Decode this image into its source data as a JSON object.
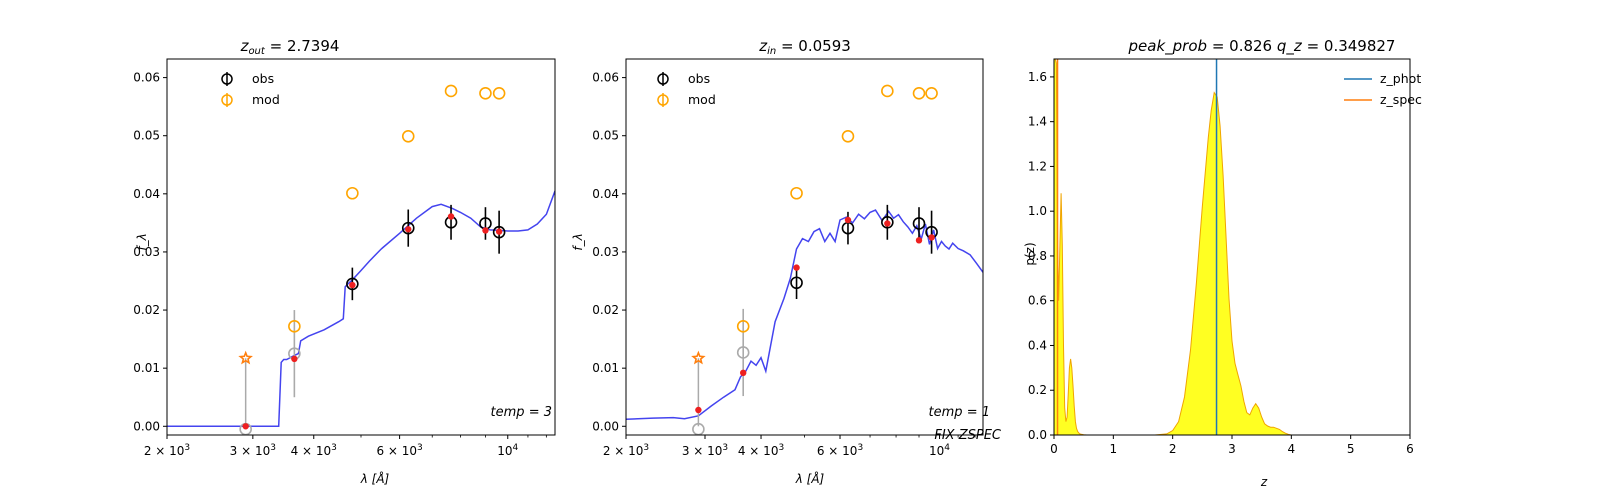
{
  "chart_data": [
    {
      "type": "scatter",
      "title": "z_out = 2.7394",
      "title_parts": {
        "var": "z",
        "sub": "out",
        "eq": "= 2.7394"
      },
      "xlabel": "λ [Å]",
      "ylabel": "f_λ",
      "xscale": "log",
      "xlim": [
        2000,
        12500
      ],
      "ylim": [
        -0.0015,
        0.0632
      ],
      "xticks": [
        {
          "value": 2000,
          "label_base": "2 × 10",
          "label_exp": "3"
        },
        {
          "value": 3000,
          "label_base": "3 × 10",
          "label_exp": "3"
        },
        {
          "value": 4000,
          "label_base": "4 × 10",
          "label_exp": "3"
        },
        {
          "value": 6000,
          "label_base": "6 × 10",
          "label_exp": "3"
        },
        {
          "value": 10000,
          "label_base": "10",
          "label_exp": "4"
        }
      ],
      "yticks": [
        0.0,
        0.01,
        0.02,
        0.03,
        0.04,
        0.05,
        0.06
      ],
      "ytick_labels": [
        "0.00",
        "0.01",
        "0.02",
        "0.03",
        "0.04",
        "0.05",
        "0.06"
      ],
      "legend": {
        "location": "upper left",
        "entries": [
          "obs",
          "mod"
        ]
      },
      "annotation": [
        "temp = 3"
      ],
      "colors": {
        "obs": "#000000",
        "obs_gray": "#aaaaaa",
        "mod": "#ffa500",
        "template": "#3a3aee",
        "model_point": "#ee2020",
        "upper_limit": "#ff7f0e"
      },
      "template": {
        "x": [
          2000,
          3390,
          3430,
          3470,
          3520,
          3650,
          3720,
          3760,
          3900,
          4200,
          4500,
          4600,
          4640,
          4700,
          4800,
          5000,
          5200,
          5500,
          6000,
          6500,
          7000,
          7300,
          7700,
          8000,
          8400,
          8800,
          9200,
          9600,
          10000,
          10500,
          11000,
          11500,
          12000,
          12500
        ],
        "y": [
          0.0,
          0.0,
          0.011,
          0.0115,
          0.0115,
          0.0122,
          0.0125,
          0.0147,
          0.0155,
          0.0166,
          0.018,
          0.0185,
          0.024,
          0.0245,
          0.0252,
          0.0268,
          0.0284,
          0.0305,
          0.0332,
          0.0358,
          0.0378,
          0.0382,
          0.0375,
          0.0368,
          0.0358,
          0.0343,
          0.0338,
          0.0337,
          0.0336,
          0.0336,
          0.0338,
          0.0348,
          0.0365,
          0.0405
        ]
      },
      "obs": [
        {
          "x": 2900,
          "y": -0.0005,
          "err": 0.0,
          "color": "gray"
        },
        {
          "x": 3650,
          "y": 0.0125,
          "err": 0.0075,
          "color": "gray"
        },
        {
          "x": 4800,
          "y": 0.0245,
          "err": 0.0028,
          "color": "black"
        },
        {
          "x": 6250,
          "y": 0.0341,
          "err": 0.0032,
          "color": "black"
        },
        {
          "x": 7650,
          "y": 0.0351,
          "err": 0.003,
          "color": "black"
        },
        {
          "x": 9000,
          "y": 0.0349,
          "err": 0.0028,
          "color": "black"
        },
        {
          "x": 9600,
          "y": 0.0334,
          "err": 0.0037,
          "color": "black"
        }
      ],
      "upper_limit": {
        "x": 2900,
        "y": 0.0117
      },
      "mod": [
        {
          "x": 3650,
          "y": 0.0172
        },
        {
          "x": 4800,
          "y": 0.0401
        },
        {
          "x": 6250,
          "y": 0.0499
        },
        {
          "x": 7650,
          "y": 0.0577
        },
        {
          "x": 9000,
          "y": 0.0573
        },
        {
          "x": 9600,
          "y": 0.0573
        }
      ],
      "model_points": [
        {
          "x": 2900,
          "y": 0.0
        },
        {
          "x": 3650,
          "y": 0.0116
        },
        {
          "x": 4800,
          "y": 0.0243
        },
        {
          "x": 6250,
          "y": 0.0339
        },
        {
          "x": 7650,
          "y": 0.0361
        },
        {
          "x": 9000,
          "y": 0.0337
        },
        {
          "x": 9600,
          "y": 0.0335
        }
      ]
    },
    {
      "type": "scatter",
      "title": "z_in = 0.0593",
      "title_parts": {
        "var": "z",
        "sub": "in",
        "eq": "= 0.0593"
      },
      "xlabel": "λ [Å]",
      "ylabel": "f_λ",
      "xscale": "log",
      "xlim": [
        2000,
        12500
      ],
      "ylim": [
        -0.0015,
        0.0632
      ],
      "xticks": [
        {
          "value": 2000,
          "label_base": "2 × 10",
          "label_exp": "3"
        },
        {
          "value": 3000,
          "label_base": "3 × 10",
          "label_exp": "3"
        },
        {
          "value": 4000,
          "label_base": "4 × 10",
          "label_exp": "3"
        },
        {
          "value": 6000,
          "label_base": "6 × 10",
          "label_exp": "3"
        },
        {
          "value": 10000,
          "label_base": "10",
          "label_exp": "4"
        }
      ],
      "yticks": [
        0.0,
        0.01,
        0.02,
        0.03,
        0.04,
        0.05,
        0.06
      ],
      "ytick_labels": [
        "0.00",
        "0.01",
        "0.02",
        "0.03",
        "0.04",
        "0.05",
        "0.06"
      ],
      "legend": {
        "location": "upper left",
        "entries": [
          "obs",
          "mod"
        ]
      },
      "annotation": [
        "temp = 1",
        "FIX ZSPEC"
      ],
      "colors": {
        "obs": "#000000",
        "obs_gray": "#aaaaaa",
        "mod": "#ffa500",
        "template": "#3a3aee",
        "model_point": "#ee2020",
        "upper_limit": "#ff7f0e"
      },
      "template": {
        "x": [
          2000,
          2300,
          2550,
          2700,
          2900,
          3100,
          3300,
          3500,
          3600,
          3700,
          3800,
          3900,
          4000,
          4100,
          4300,
          4500,
          4650,
          4800,
          4950,
          5100,
          5250,
          5400,
          5550,
          5700,
          5850,
          6000,
          6200,
          6400,
          6600,
          6800,
          7000,
          7200,
          7450,
          7700,
          7900,
          8100,
          8300,
          8500,
          8700,
          8900,
          9100,
          9300,
          9500,
          9700,
          9900,
          10100,
          10300,
          10500,
          10700,
          11000,
          11300,
          11700,
          12100,
          12500
        ],
        "y": [
          0.0012,
          0.0014,
          0.0015,
          0.0013,
          0.0018,
          0.0035,
          0.005,
          0.0063,
          0.0085,
          0.0095,
          0.0112,
          0.0105,
          0.0118,
          0.0095,
          0.018,
          0.022,
          0.0255,
          0.0305,
          0.0323,
          0.0318,
          0.0335,
          0.034,
          0.0318,
          0.0332,
          0.0318,
          0.0355,
          0.036,
          0.035,
          0.0365,
          0.0357,
          0.0368,
          0.0372,
          0.0354,
          0.037,
          0.0358,
          0.0364,
          0.0352,
          0.0343,
          0.0332,
          0.0345,
          0.0322,
          0.0348,
          0.0313,
          0.0338,
          0.0306,
          0.0318,
          0.031,
          0.0305,
          0.0315,
          0.0306,
          0.0302,
          0.0295,
          0.028,
          0.0265
        ]
      },
      "obs": [
        {
          "x": 2900,
          "y": -0.0005,
          "err": 0.0,
          "color": "gray"
        },
        {
          "x": 3650,
          "y": 0.0127,
          "err": 0.0075,
          "color": "gray"
        },
        {
          "x": 4800,
          "y": 0.0247,
          "err": 0.0028,
          "color": "black"
        },
        {
          "x": 6250,
          "y": 0.0341,
          "err": 0.0028,
          "color": "black"
        },
        {
          "x": 7650,
          "y": 0.0351,
          "err": 0.003,
          "color": "black"
        },
        {
          "x": 9000,
          "y": 0.0349,
          "err": 0.0028,
          "color": "black"
        },
        {
          "x": 9600,
          "y": 0.0334,
          "err": 0.0037,
          "color": "black"
        }
      ],
      "upper_limit": {
        "x": 2900,
        "y": 0.0117
      },
      "mod": [
        {
          "x": 3650,
          "y": 0.0172
        },
        {
          "x": 4800,
          "y": 0.0401
        },
        {
          "x": 6250,
          "y": 0.0499
        },
        {
          "x": 7650,
          "y": 0.0577
        },
        {
          "x": 9000,
          "y": 0.0573
        },
        {
          "x": 9600,
          "y": 0.0573
        }
      ],
      "model_points": [
        {
          "x": 2900,
          "y": 0.0028
        },
        {
          "x": 3650,
          "y": 0.0092
        },
        {
          "x": 4800,
          "y": 0.0273
        },
        {
          "x": 6250,
          "y": 0.0355
        },
        {
          "x": 7650,
          "y": 0.0349
        },
        {
          "x": 9000,
          "y": 0.032
        },
        {
          "x": 9600,
          "y": 0.0325
        }
      ]
    },
    {
      "type": "area",
      "title": "peak_prob = 0.826      q_z = 0.349827",
      "title_parts": {
        "left_var": "peak_prob",
        "left_eq": "= 0.826",
        "right_var": "q_z",
        "right_eq": "= 0.349827"
      },
      "xlabel": "z",
      "ylabel": "p(z)",
      "xlim": [
        0,
        6
      ],
      "ylim": [
        0,
        1.68
      ],
      "xticks": [
        0,
        1,
        2,
        3,
        4,
        5,
        6
      ],
      "xtick_labels": [
        "0",
        "1",
        "2",
        "3",
        "4",
        "5",
        "6"
      ],
      "yticks": [
        0.0,
        0.2,
        0.4,
        0.6,
        0.8,
        1.0,
        1.2,
        1.4,
        1.6
      ],
      "ytick_labels": [
        "0.0",
        "0.2",
        "0.4",
        "0.6",
        "0.8",
        "1.0",
        "1.2",
        "1.4",
        "1.6"
      ],
      "legend": {
        "location": "upper right",
        "entries": [
          "z_phot",
          "z_spec"
        ]
      },
      "colors": {
        "fill": "#ffff22",
        "edge": "#f0a500",
        "z_phot": "#1f77b4",
        "z_spec": "#ff7f0e"
      },
      "z_phot": 2.7394,
      "z_spec": 0.0593,
      "pz": {
        "x": [
          0.0,
          0.02,
          0.04,
          0.06,
          0.08,
          0.1,
          0.12,
          0.14,
          0.16,
          0.18,
          0.2,
          0.22,
          0.24,
          0.26,
          0.28,
          0.3,
          0.32,
          0.34,
          0.36,
          0.38,
          0.4,
          0.43,
          0.46,
          0.5,
          0.55,
          0.6,
          0.7,
          0.8,
          1.0,
          1.5,
          1.7,
          1.9,
          2.0,
          2.1,
          2.2,
          2.3,
          2.4,
          2.5,
          2.6,
          2.65,
          2.7,
          2.75,
          2.8,
          2.85,
          2.9,
          2.95,
          3.0,
          3.05,
          3.1,
          3.15,
          3.2,
          3.25,
          3.3,
          3.35,
          3.4,
          3.45,
          3.5,
          3.55,
          3.6,
          3.65,
          3.7,
          3.75,
          3.8,
          3.85,
          3.9,
          3.95,
          4.0,
          4.2,
          5.0
        ],
        "y": [
          1.68,
          1.68,
          1.66,
          0.85,
          0.6,
          0.85,
          1.08,
          0.85,
          0.4,
          0.12,
          0.06,
          0.08,
          0.18,
          0.3,
          0.34,
          0.3,
          0.22,
          0.13,
          0.06,
          0.03,
          0.015,
          0.006,
          0.003,
          0.001,
          0.0,
          0.0,
          0.0,
          0.0,
          0.0,
          0.0,
          0.0,
          0.005,
          0.02,
          0.06,
          0.17,
          0.38,
          0.68,
          1.02,
          1.33,
          1.45,
          1.53,
          1.51,
          1.38,
          1.16,
          0.88,
          0.61,
          0.42,
          0.32,
          0.27,
          0.22,
          0.15,
          0.1,
          0.09,
          0.12,
          0.14,
          0.12,
          0.08,
          0.05,
          0.04,
          0.035,
          0.035,
          0.03,
          0.025,
          0.015,
          0.008,
          0.003,
          0.0,
          0.0,
          0.0
        ]
      }
    }
  ]
}
